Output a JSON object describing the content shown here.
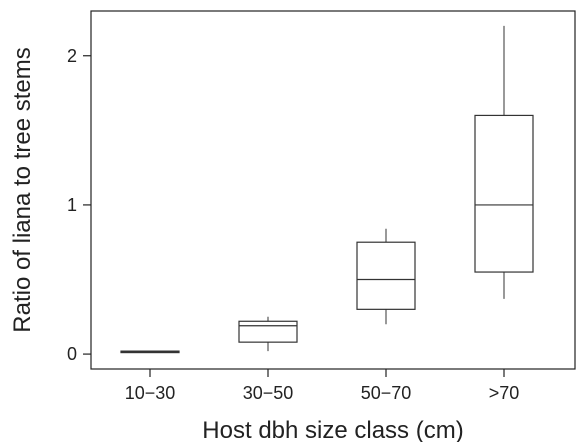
{
  "chart_data": {
    "type": "box",
    "title": "",
    "xlabel": "Host dbh size class (cm)",
    "ylabel": "Ratio of liana to tree stems",
    "categories": [
      "10−30",
      "30−50",
      "50−70",
      ">70"
    ],
    "ylim": [
      -0.1,
      2.3
    ],
    "yticks": [
      0,
      1,
      2
    ],
    "ytick_labels": [
      "0",
      "1",
      "2"
    ],
    "grid": false,
    "boxes": [
      {
        "category": "10−30",
        "min": 0.01,
        "q1": 0.01,
        "median": 0.015,
        "q3": 0.02,
        "max": 0.02
      },
      {
        "category": "30−50",
        "min": 0.02,
        "q1": 0.08,
        "median": 0.19,
        "q3": 0.22,
        "max": 0.25
      },
      {
        "category": "50−70",
        "min": 0.2,
        "q1": 0.3,
        "median": 0.5,
        "q3": 0.75,
        "max": 0.84
      },
      {
        "category": ">70",
        "min": 0.37,
        "q1": 0.55,
        "median": 1.0,
        "q3": 1.6,
        "max": 2.2
      }
    ]
  }
}
